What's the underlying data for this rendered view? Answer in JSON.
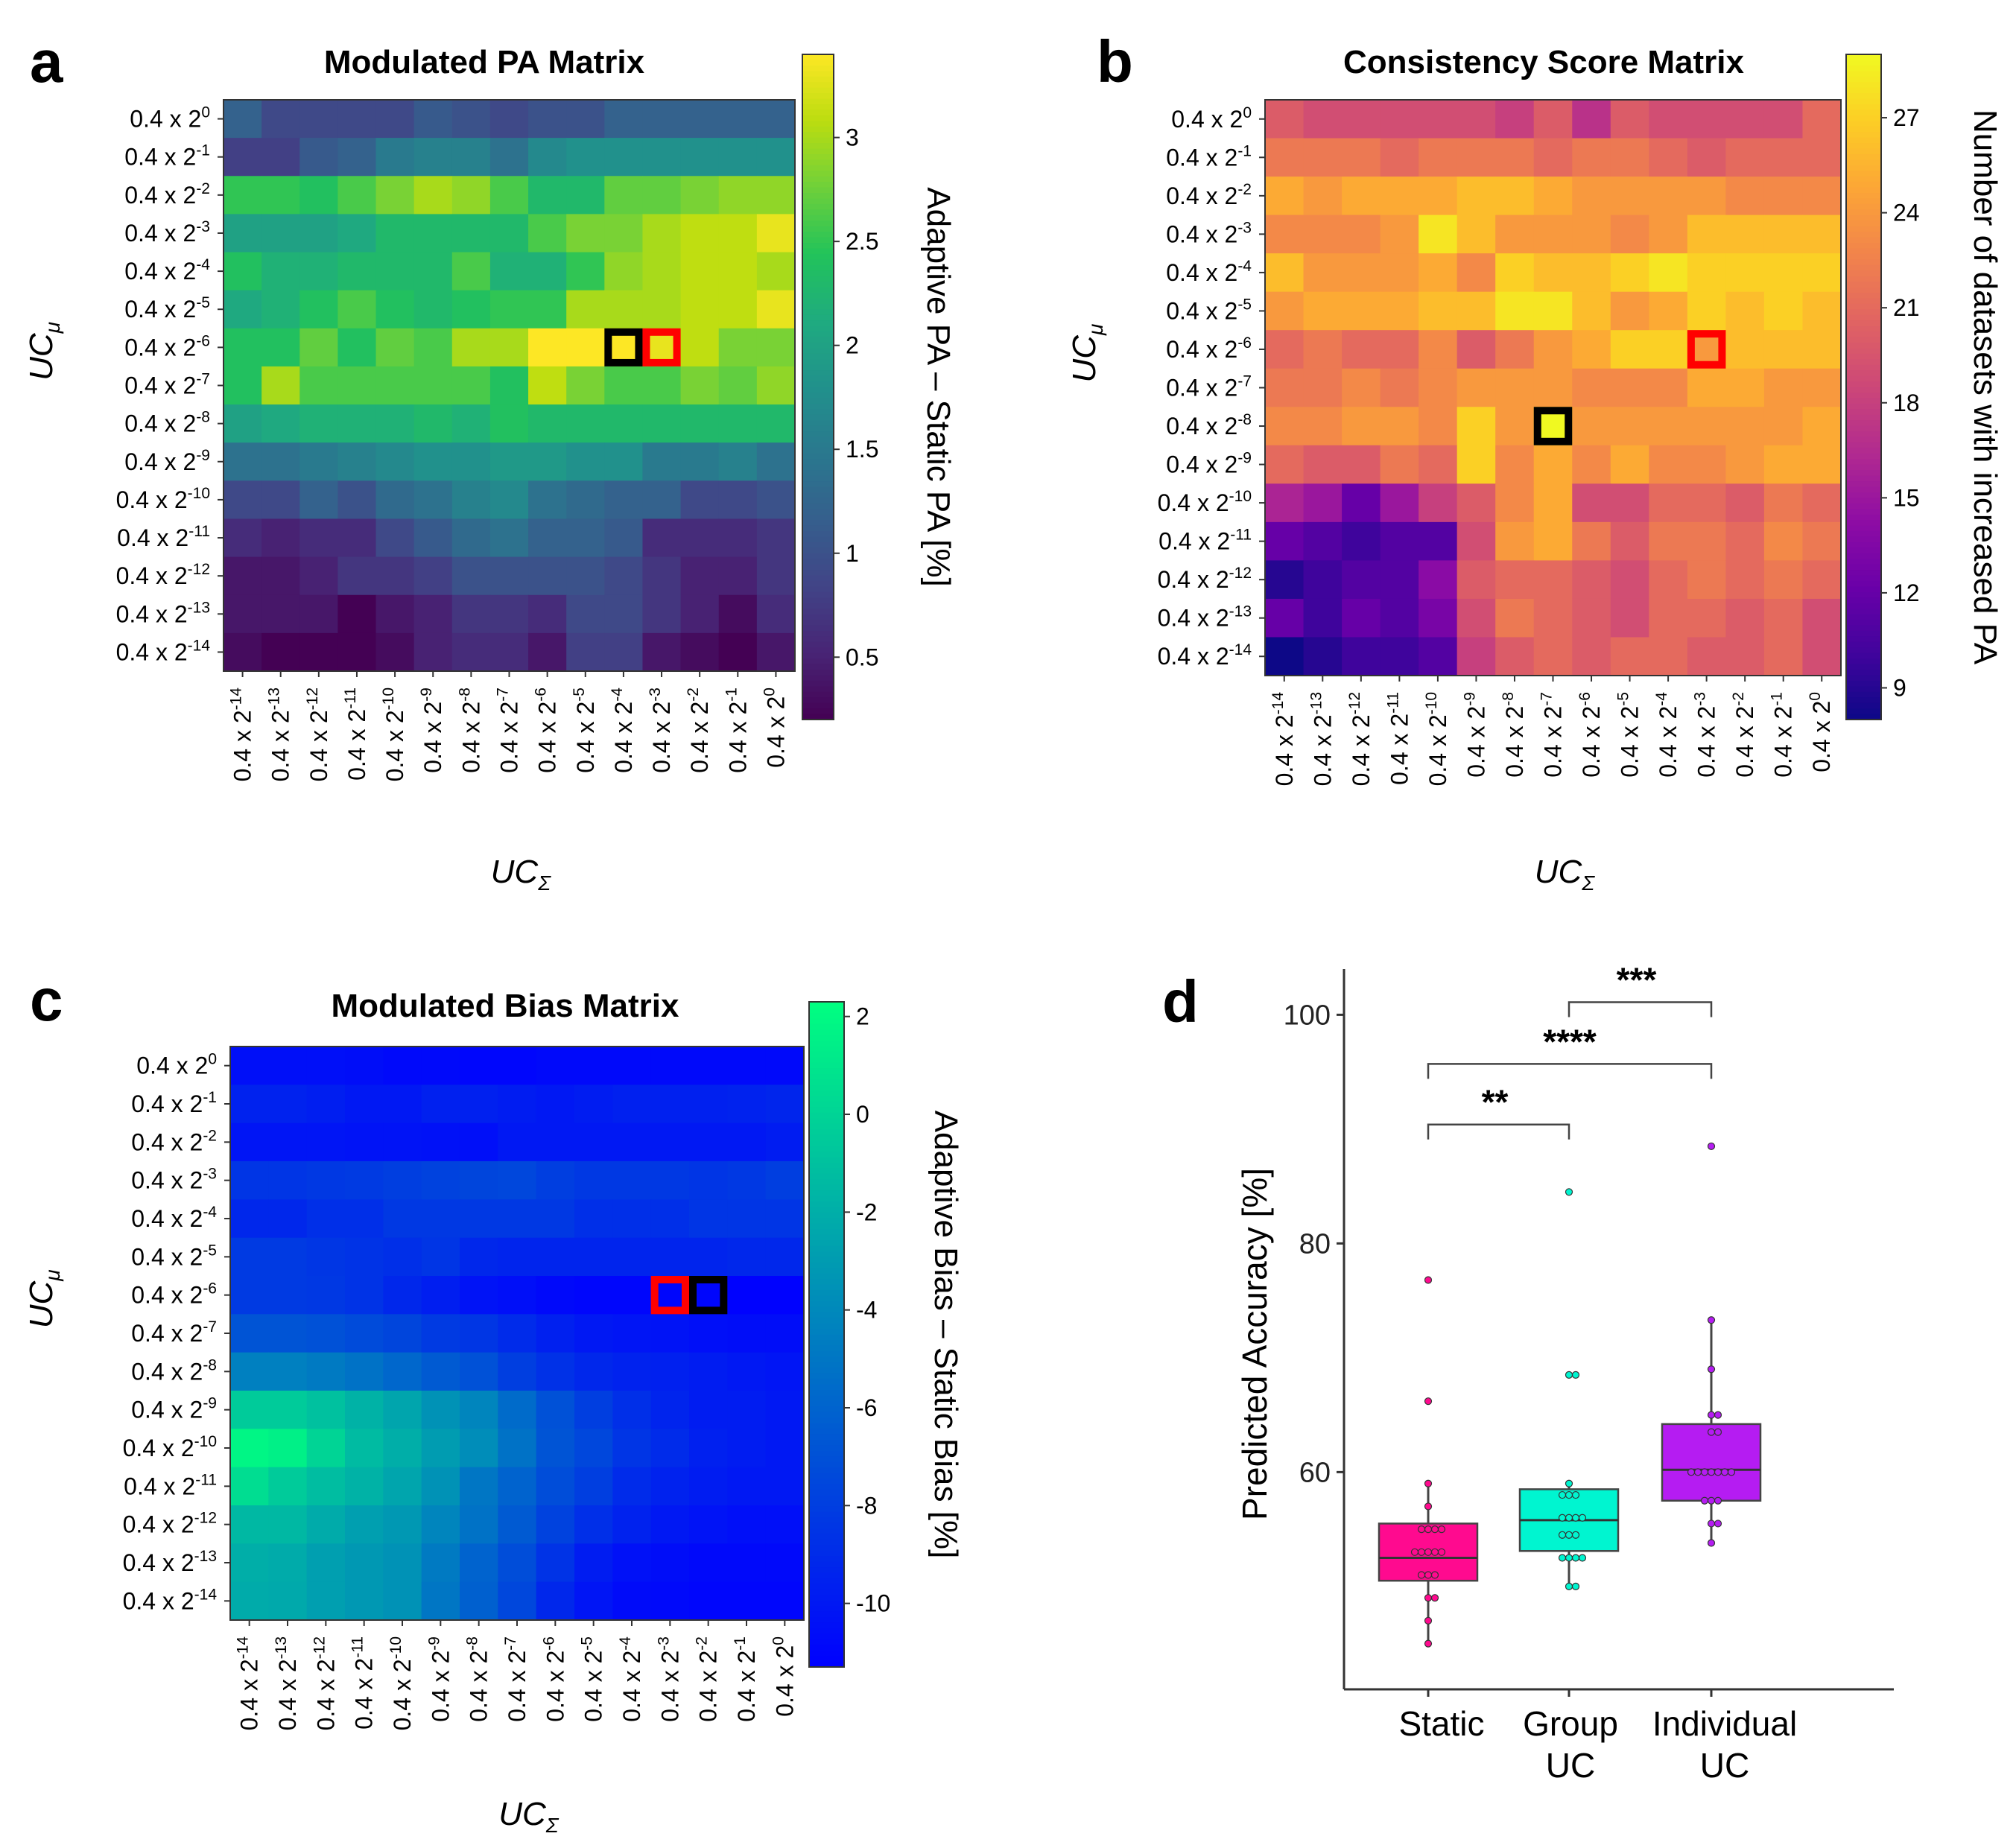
{
  "chart_data": [
    {
      "type": "heatmap",
      "panel_label": "a",
      "title": "Modulated PA Matrix",
      "ylabel": "UC",
      "ylabel_sub": "μ",
      "xlabel": "UC",
      "xlabel_sub": "Σ",
      "tick_base": "0.4 x 2",
      "row_exponents": [
        "0",
        "-1",
        "-2",
        "-3",
        "-4",
        "-5",
        "-6",
        "-7",
        "-8",
        "-9",
        "-10",
        "-11",
        "-12",
        "-13",
        "-14"
      ],
      "col_exponents": [
        "-14",
        "-13",
        "-12",
        "-11",
        "-10",
        "-9",
        "-8",
        "-7",
        "-6",
        "-5",
        "-4",
        "-3",
        "-2",
        "-1",
        "0"
      ],
      "colormap": "viridis",
      "vmin": 0.2,
      "vmax": 3.4,
      "colorbar_label": "Adaptive PA – Static PA [%]",
      "colorbar_ticks": [
        "0.5",
        "1",
        "1.5",
        "2",
        "2.5",
        "3"
      ],
      "highlights": [
        {
          "row": 6,
          "col": 10,
          "color": "#000000"
        },
        {
          "row": 6,
          "col": 11,
          "color": "#ff0000"
        }
      ],
      "values": [
        [
          1.2,
          0.9,
          0.9,
          0.9,
          0.9,
          1.1,
          1.0,
          0.9,
          1.0,
          1.0,
          1.2,
          1.2,
          1.2,
          1.2,
          1.2
        ],
        [
          0.8,
          0.8,
          1.1,
          1.2,
          1.5,
          1.6,
          1.6,
          1.4,
          1.7,
          1.8,
          1.8,
          1.8,
          1.8,
          1.8,
          1.8
        ],
        [
          2.5,
          2.5,
          2.4,
          2.6,
          2.8,
          3.0,
          2.9,
          2.6,
          2.3,
          2.3,
          2.7,
          2.7,
          2.8,
          2.9,
          2.9
        ],
        [
          2.0,
          2.0,
          2.0,
          2.1,
          2.3,
          2.3,
          2.3,
          2.3,
          2.6,
          2.8,
          2.8,
          3.0,
          3.1,
          3.1,
          3.3
        ],
        [
          2.4,
          2.2,
          2.2,
          2.3,
          2.3,
          2.3,
          2.6,
          2.2,
          2.2,
          2.5,
          2.9,
          3.0,
          3.1,
          3.1,
          3.0
        ],
        [
          2.1,
          2.2,
          2.4,
          2.6,
          2.4,
          2.3,
          2.4,
          2.5,
          2.5,
          3.0,
          3.0,
          3.0,
          3.1,
          3.1,
          3.3
        ],
        [
          2.4,
          2.4,
          2.7,
          2.4,
          2.7,
          2.6,
          3.0,
          3.0,
          3.4,
          3.4,
          3.4,
          3.3,
          3.1,
          2.8,
          2.8
        ],
        [
          2.4,
          3.0,
          2.6,
          2.6,
          2.6,
          2.6,
          2.6,
          2.4,
          3.1,
          2.8,
          2.6,
          2.6,
          2.8,
          2.7,
          2.9
        ],
        [
          2.0,
          2.1,
          2.2,
          2.2,
          2.2,
          2.3,
          2.2,
          2.4,
          2.3,
          2.3,
          2.3,
          2.3,
          2.3,
          2.3,
          2.3
        ],
        [
          1.4,
          1.4,
          1.5,
          1.6,
          1.7,
          1.8,
          1.8,
          1.9,
          1.9,
          1.8,
          1.8,
          1.5,
          1.5,
          1.6,
          1.4
        ],
        [
          0.9,
          0.9,
          1.2,
          1.0,
          1.3,
          1.4,
          1.6,
          1.7,
          1.4,
          1.3,
          1.2,
          1.2,
          0.9,
          0.9,
          1.0
        ],
        [
          0.6,
          0.5,
          0.6,
          0.6,
          0.9,
          1.1,
          1.3,
          1.4,
          1.2,
          1.2,
          1.1,
          0.6,
          0.6,
          0.6,
          0.7
        ],
        [
          0.4,
          0.4,
          0.5,
          0.7,
          0.7,
          0.8,
          1.0,
          1.0,
          1.0,
          1.0,
          0.9,
          0.7,
          0.5,
          0.5,
          0.7
        ],
        [
          0.4,
          0.4,
          0.4,
          0.2,
          0.4,
          0.5,
          0.7,
          0.7,
          0.6,
          0.9,
          0.9,
          0.7,
          0.5,
          0.3,
          0.6
        ],
        [
          0.3,
          0.2,
          0.2,
          0.2,
          0.3,
          0.5,
          0.6,
          0.6,
          0.4,
          0.8,
          0.8,
          0.4,
          0.3,
          0.2,
          0.4
        ]
      ]
    },
    {
      "type": "heatmap",
      "panel_label": "b",
      "title": "Consistency Score Matrix",
      "ylabel": "UC",
      "ylabel_sub": "μ",
      "xlabel": "UC",
      "xlabel_sub": "Σ",
      "tick_base": "0.4 x 2",
      "row_exponents": [
        "0",
        "-1",
        "-2",
        "-3",
        "-4",
        "-5",
        "-6",
        "-7",
        "-8",
        "-9",
        "-10",
        "-11",
        "-12",
        "-13",
        "-14"
      ],
      "col_exponents": [
        "-14",
        "-13",
        "-12",
        "-11",
        "-10",
        "-9",
        "-8",
        "-7",
        "-6",
        "-5",
        "-4",
        "-3",
        "-2",
        "-1",
        "0"
      ],
      "colormap": "plasma",
      "vmin": 8,
      "vmax": 29,
      "colorbar_label": "Number of datasets with increased PA",
      "colorbar_ticks": [
        "9",
        "12",
        "15",
        "18",
        "21",
        "24",
        "27"
      ],
      "highlights": [
        {
          "row": 6,
          "col": 11,
          "color": "#ff0000"
        },
        {
          "row": 8,
          "col": 7,
          "color": "#000000"
        }
      ],
      "values": [
        [
          20,
          19,
          19,
          19,
          19,
          19,
          18,
          20,
          17,
          20,
          19,
          19,
          19,
          19,
          21
        ],
        [
          22,
          22,
          22,
          21,
          22,
          22,
          22,
          21,
          22,
          22,
          21,
          20,
          21,
          21,
          21
        ],
        [
          25,
          24,
          25,
          25,
          25,
          26,
          26,
          25,
          24,
          24,
          24,
          24,
          23,
          23,
          23
        ],
        [
          23,
          23,
          23,
          24,
          28,
          26,
          24,
          24,
          24,
          23,
          24,
          26,
          26,
          26,
          26
        ],
        [
          26,
          24,
          24,
          24,
          25,
          23,
          27,
          26,
          26,
          27,
          28,
          27,
          27,
          27,
          27
        ],
        [
          24,
          25,
          25,
          25,
          26,
          26,
          28,
          28,
          26,
          24,
          25,
          27,
          26,
          27,
          26
        ],
        [
          21,
          22,
          21,
          21,
          23,
          20,
          22,
          24,
          25,
          27,
          27,
          24,
          26,
          26,
          26
        ],
        [
          22,
          22,
          23,
          22,
          23,
          24,
          24,
          24,
          23,
          23,
          23,
          25,
          25,
          24,
          24
        ],
        [
          23,
          23,
          24,
          24,
          23,
          27,
          24,
          29,
          24,
          24,
          24,
          24,
          24,
          24,
          25
        ],
        [
          21,
          20,
          20,
          22,
          21,
          27,
          23,
          25,
          23,
          25,
          23,
          23,
          24,
          25,
          25
        ],
        [
          16,
          15,
          12,
          15,
          18,
          20,
          23,
          25,
          19,
          19,
          21,
          21,
          20,
          22,
          21
        ],
        [
          12,
          11,
          10,
          11,
          11,
          19,
          24,
          25,
          22,
          20,
          22,
          22,
          21,
          23,
          22
        ],
        [
          9,
          10,
          11,
          11,
          14,
          20,
          21,
          21,
          20,
          19,
          21,
          22,
          21,
          22,
          21
        ],
        [
          12,
          10,
          12,
          11,
          13,
          19,
          22,
          21,
          20,
          19,
          21,
          21,
          20,
          21,
          19
        ],
        [
          8,
          9,
          10,
          10,
          11,
          18,
          20,
          21,
          20,
          21,
          21,
          20,
          20,
          21,
          19
        ]
      ]
    },
    {
      "type": "heatmap",
      "panel_label": "c",
      "title": "Modulated Bias Matrix",
      "ylabel": "UC",
      "ylabel_sub": "μ",
      "xlabel": "UC",
      "xlabel_sub": "Σ",
      "tick_base": "0.4 x 2",
      "row_exponents": [
        "0",
        "-1",
        "-2",
        "-3",
        "-4",
        "-5",
        "-6",
        "-7",
        "-8",
        "-9",
        "-10",
        "-11",
        "-12",
        "-13",
        "-14"
      ],
      "col_exponents": [
        "-14",
        "-13",
        "-12",
        "-11",
        "-10",
        "-9",
        "-8",
        "-7",
        "-6",
        "-5",
        "-4",
        "-3",
        "-2",
        "-1",
        "0"
      ],
      "colormap": "winter",
      "vmin": -11.3,
      "vmax": 2.3,
      "colorbar_label": "Adaptive Bias – Static Bias [%]",
      "colorbar_ticks": [
        "2",
        "0",
        "-2",
        "-4",
        "-6",
        "-8",
        "-10"
      ],
      "highlights": [
        {
          "row": 6,
          "col": 11,
          "color": "#ff0000"
        },
        {
          "row": 6,
          "col": 12,
          "color": "#000000"
        }
      ],
      "values": [
        [
          -10.5,
          -10.5,
          -10.5,
          -10.6,
          -10.8,
          -10.8,
          -11,
          -11,
          -10.8,
          -10.8,
          -10.8,
          -10.8,
          -10.8,
          -10.8,
          -10.8
        ],
        [
          -9.5,
          -9.5,
          -9.7,
          -10,
          -10,
          -9.6,
          -9.6,
          -9.8,
          -10,
          -9.8,
          -9.6,
          -9.6,
          -9.6,
          -9.5,
          -9.3
        ],
        [
          -10.2,
          -10.2,
          -10.2,
          -10.3,
          -10.3,
          -10.4,
          -10.5,
          -10,
          -10,
          -10,
          -10,
          -10,
          -10,
          -10,
          -9.8
        ],
        [
          -8.5,
          -8.5,
          -8.3,
          -8.2,
          -8,
          -7.8,
          -7.6,
          -7.5,
          -8,
          -8.3,
          -8.3,
          -8.3,
          -8.5,
          -8.3,
          -8
        ],
        [
          -9.2,
          -9.2,
          -8.8,
          -8.8,
          -8.3,
          -8.3,
          -8.3,
          -8.3,
          -8.3,
          -8.8,
          -8.8,
          -8.8,
          -8.5,
          -8.5,
          -8.5
        ],
        [
          -8.2,
          -8.2,
          -8.4,
          -8.6,
          -8.8,
          -8.5,
          -9.2,
          -9.4,
          -9.4,
          -9.4,
          -9.4,
          -9.4,
          -9.4,
          -9.2,
          -9.2
        ],
        [
          -8.2,
          -8.2,
          -8.3,
          -8.6,
          -9.2,
          -9.7,
          -10.3,
          -10.5,
          -10.8,
          -11,
          -11,
          -11,
          -11,
          -11.2,
          -11.2
        ],
        [
          -6.8,
          -6.8,
          -7,
          -7.3,
          -7.6,
          -8.2,
          -8.4,
          -9,
          -9.6,
          -10,
          -10.2,
          -10.3,
          -10.5,
          -10.6,
          -10.6
        ],
        [
          -4.5,
          -4.5,
          -4.8,
          -5.2,
          -5.8,
          -6.5,
          -7,
          -8,
          -8.7,
          -9.2,
          -9.5,
          -9.6,
          -9.8,
          -10,
          -10.2
        ],
        [
          -0.5,
          -0.5,
          -1,
          -1.8,
          -2.5,
          -3.5,
          -4.2,
          -5.6,
          -7,
          -8,
          -8.8,
          -9.4,
          -9.8,
          -9.8,
          -10
        ],
        [
          1.8,
          1.5,
          0,
          -1.3,
          -2,
          -3,
          -3.8,
          -5.2,
          -6.8,
          -7.5,
          -8.5,
          -9,
          -9.6,
          -9.8,
          -10
        ],
        [
          0.5,
          -0.5,
          -1.2,
          -1.8,
          -2.5,
          -3.5,
          -5,
          -6,
          -7.2,
          -8,
          -9,
          -9.5,
          -9.8,
          -10,
          -10
        ],
        [
          -1.5,
          -1.5,
          -2.2,
          -2.8,
          -3.2,
          -4.2,
          -5.2,
          -6.5,
          -7.8,
          -8.8,
          -9.5,
          -10,
          -10.3,
          -10.5,
          -10.5
        ],
        [
          -2,
          -2.2,
          -2.8,
          -3.2,
          -3.5,
          -4.8,
          -6,
          -7.2,
          -8.6,
          -9.8,
          -10.4,
          -10.6,
          -10.8,
          -10.8,
          -10.8
        ],
        [
          -2.2,
          -2.3,
          -2.8,
          -3.2,
          -3.5,
          -5,
          -6.2,
          -7.5,
          -9.2,
          -10.2,
          -10.7,
          -10.8,
          -11,
          -11,
          -11
        ]
      ]
    },
    {
      "type": "box",
      "panel_label": "d",
      "ylabel": "Predicted Accuracy [%]",
      "ylim": [
        41,
        104
      ],
      "yticks": [
        "60",
        "80",
        "100"
      ],
      "groups": [
        {
          "name_lines": [
            "Static"
          ],
          "color": "#ff0a8f",
          "q1": 50.5,
          "median": 52.5,
          "q3": 55.5,
          "whisker_low": 45,
          "whisker_high": 59,
          "points": [
            76.8,
            66.2,
            59,
            57,
            55,
            55,
            55,
            55,
            53,
            53,
            53,
            53,
            53,
            51,
            51,
            51,
            49,
            49,
            47,
            45
          ]
        },
        {
          "name_lines": [
            "Group",
            "UC"
          ],
          "color": "#00f5d0",
          "q1": 53.1,
          "median": 55.8,
          "q3": 58.5,
          "whisker_low": 50,
          "whisker_high": 59,
          "points": [
            84.5,
            68.5,
            68.5,
            59,
            58,
            58,
            58,
            56,
            56,
            56,
            56,
            54.5,
            54.5,
            54.5,
            52.5,
            52.5,
            52.5,
            52.5,
            50,
            50
          ]
        },
        {
          "name_lines": [
            "Individual",
            "UC"
          ],
          "color": "#b51cf2",
          "q1": 57.5,
          "median": 60.2,
          "q3": 64.2,
          "whisker_low": 53.8,
          "whisker_high": 73.3,
          "points": [
            88.5,
            73.3,
            69,
            65,
            65,
            63.5,
            63.5,
            60,
            60,
            60,
            60,
            60,
            60,
            60,
            57.5,
            57.5,
            57.5,
            55.5,
            55.5,
            53.8
          ]
        }
      ],
      "significance": [
        {
          "from": 0,
          "to": 1,
          "label": "**"
        },
        {
          "from": 0,
          "to": 2,
          "label": "****"
        },
        {
          "from": 1,
          "to": 2,
          "label": "***"
        }
      ]
    }
  ]
}
